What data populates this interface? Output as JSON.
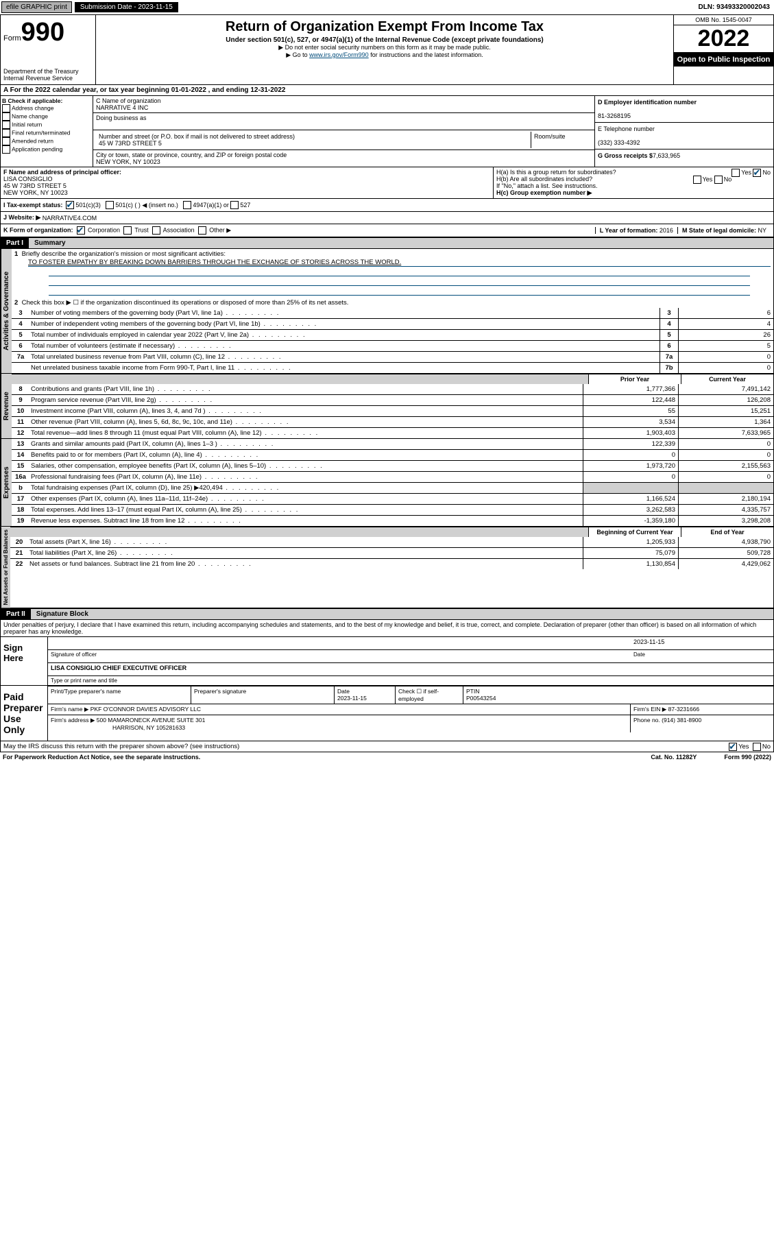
{
  "topbar": {
    "efile": "efile GRAPHIC print",
    "submission_label": "Submission Date - 2023-11-15",
    "dln": "DLN: 93493320002043"
  },
  "header": {
    "form_label": "Form",
    "form_number": "990",
    "dept": "Department of the Treasury",
    "irs": "Internal Revenue Service",
    "title": "Return of Organization Exempt From Income Tax",
    "subtitle": "Under section 501(c), 527, or 4947(a)(1) of the Internal Revenue Code (except private foundations)",
    "note1": "▶ Do not enter social security numbers on this form as it may be made public.",
    "note2_pre": "▶ Go to ",
    "note2_link": "www.irs.gov/Form990",
    "note2_post": " for instructions and the latest information.",
    "omb": "OMB No. 1545-0047",
    "year": "2022",
    "open": "Open to Public Inspection"
  },
  "row_a": "A For the 2022 calendar year, or tax year beginning 01-01-2022   , and ending 12-31-2022",
  "col_b": {
    "label": "B Check if applicable:",
    "items": [
      "Address change",
      "Name change",
      "Initial return",
      "Final return/terminated",
      "Amended return",
      "Application pending"
    ]
  },
  "col_c": {
    "name_label": "C Name of organization",
    "name": "NARRATIVE 4 INC",
    "dba_label": "Doing business as",
    "addr_label": "Number and street (or P.O. box if mail is not delivered to street address)",
    "room_label": "Room/suite",
    "addr": "45 W 73RD STREET 5",
    "city_label": "City or town, state or province, country, and ZIP or foreign postal code",
    "city": "NEW YORK, NY  10023"
  },
  "col_de": {
    "d_label": "D Employer identification number",
    "ein": "81-3268195",
    "e_label": "E Telephone number",
    "phone": "(332) 333-4392",
    "g_label": "G Gross receipts $",
    "gross": "7,633,965"
  },
  "col_f": {
    "label": "F Name and address of principal officer:",
    "name": "LISA CONSIGLIO",
    "addr1": "45 W 73RD STREET 5",
    "addr2": "NEW YORK, NY  10023"
  },
  "col_h": {
    "ha": "H(a)  Is this a group return for subordinates?",
    "hb": "H(b)  Are all subordinates included?",
    "hb_note": "If \"No,\" attach a list. See instructions.",
    "hc": "H(c)  Group exemption number ▶",
    "yes": "Yes",
    "no": "No"
  },
  "row_i": {
    "label": "I    Tax-exempt status:",
    "opt1": "501(c)(3)",
    "opt2": "501(c) (  ) ◀ (insert no.)",
    "opt3": "4947(a)(1) or",
    "opt4": "527"
  },
  "row_j": {
    "label": "J   Website: ▶",
    "val": "NARRATIVE4.COM"
  },
  "row_k": {
    "label": "K Form of organization:",
    "opts": [
      "Corporation",
      "Trust",
      "Association",
      "Other ▶"
    ],
    "l_label": "L Year of formation:",
    "l_val": "2016",
    "m_label": "M State of legal domicile:",
    "m_val": "NY"
  },
  "part1": {
    "label": "Part I",
    "title": "Summary",
    "line1_label": "Briefly describe the organization's mission or most significant activities:",
    "mission": "TO FOSTER EMPATHY BY BREAKING DOWN BARRIERS THROUGH THE EXCHANGE OF STORIES ACROSS THE WORLD.",
    "line2": "Check this box ▶ ☐  if the organization discontinued its operations or disposed of more than 25% of its net assets.",
    "governance": [
      {
        "n": "3",
        "d": "Number of voting members of the governing body (Part VI, line 1a)",
        "k": "3",
        "v": "6"
      },
      {
        "n": "4",
        "d": "Number of independent voting members of the governing body (Part VI, line 1b)",
        "k": "4",
        "v": "4"
      },
      {
        "n": "5",
        "d": "Total number of individuals employed in calendar year 2022 (Part V, line 2a)",
        "k": "5",
        "v": "26"
      },
      {
        "n": "6",
        "d": "Total number of volunteers (estimate if necessary)",
        "k": "6",
        "v": "5"
      },
      {
        "n": "7a",
        "d": "Total unrelated business revenue from Part VIII, column (C), line 12",
        "k": "7a",
        "v": "0"
      },
      {
        "n": "",
        "d": "Net unrelated business taxable income from Form 990-T, Part I, line 11",
        "k": "7b",
        "v": "0"
      }
    ],
    "prior_label": "Prior Year",
    "current_label": "Current Year",
    "revenue": [
      {
        "n": "8",
        "d": "Contributions and grants (Part VIII, line 1h)",
        "p": "1,777,366",
        "c": "7,491,142"
      },
      {
        "n": "9",
        "d": "Program service revenue (Part VIII, line 2g)",
        "p": "122,448",
        "c": "126,208"
      },
      {
        "n": "10",
        "d": "Investment income (Part VIII, column (A), lines 3, 4, and 7d )",
        "p": "55",
        "c": "15,251"
      },
      {
        "n": "11",
        "d": "Other revenue (Part VIII, column (A), lines 5, 6d, 8c, 9c, 10c, and 11e)",
        "p": "3,534",
        "c": "1,364"
      },
      {
        "n": "12",
        "d": "Total revenue—add lines 8 through 11 (must equal Part VIII, column (A), line 12)",
        "p": "1,903,403",
        "c": "7,633,965"
      }
    ],
    "expenses": [
      {
        "n": "13",
        "d": "Grants and similar amounts paid (Part IX, column (A), lines 1–3 )",
        "p": "122,339",
        "c": "0"
      },
      {
        "n": "14",
        "d": "Benefits paid to or for members (Part IX, column (A), line 4)",
        "p": "0",
        "c": "0"
      },
      {
        "n": "15",
        "d": "Salaries, other compensation, employee benefits (Part IX, column (A), lines 5–10)",
        "p": "1,973,720",
        "c": "2,155,563"
      },
      {
        "n": "16a",
        "d": "Professional fundraising fees (Part IX, column (A), line 11e)",
        "p": "0",
        "c": "0"
      },
      {
        "n": "b",
        "d": "Total fundraising expenses (Part IX, column (D), line 25) ▶420,494",
        "p": "",
        "c": "",
        "shade": true
      },
      {
        "n": "17",
        "d": "Other expenses (Part IX, column (A), lines 11a–11d, 11f–24e)",
        "p": "1,166,524",
        "c": "2,180,194"
      },
      {
        "n": "18",
        "d": "Total expenses. Add lines 13–17 (must equal Part IX, column (A), line 25)",
        "p": "3,262,583",
        "c": "4,335,757"
      },
      {
        "n": "19",
        "d": "Revenue less expenses. Subtract line 18 from line 12",
        "p": "-1,359,180",
        "c": "3,298,208"
      }
    ],
    "begin_label": "Beginning of Current Year",
    "end_label": "End of Year",
    "netassets": [
      {
        "n": "20",
        "d": "Total assets (Part X, line 16)",
        "p": "1,205,933",
        "c": "4,938,790"
      },
      {
        "n": "21",
        "d": "Total liabilities (Part X, line 26)",
        "p": "75,079",
        "c": "509,728"
      },
      {
        "n": "22",
        "d": "Net assets or fund balances. Subtract line 21 from line 20",
        "p": "1,130,854",
        "c": "4,429,062"
      }
    ],
    "vtabs": {
      "gov": "Activities & Governance",
      "rev": "Revenue",
      "exp": "Expenses",
      "net": "Net Assets or Fund Balances"
    }
  },
  "part2": {
    "label": "Part II",
    "title": "Signature Block",
    "penalties": "Under penalties of perjury, I declare that I have examined this return, including accompanying schedules and statements, and to the best of my knowledge and belief, it is true, correct, and complete. Declaration of preparer (other than officer) is based on all information of which preparer has any knowledge.",
    "sign_here": "Sign Here",
    "sig_officer": "Signature of officer",
    "sig_date": "2023-11-15",
    "date_label": "Date",
    "officer_name": "LISA CONSIGLIO  CHIEF EXECUTIVE OFFICER",
    "type_name": "Type or print name and title",
    "paid": "Paid Preparer Use Only",
    "prep_name_label": "Print/Type preparer's name",
    "prep_sig_label": "Preparer's signature",
    "prep_date_label": "Date",
    "prep_date": "2023-11-15",
    "check_if": "Check ☐ if self-employed",
    "ptin_label": "PTIN",
    "ptin": "P00543254",
    "firm_name_label": "Firm's name    ▶",
    "firm_name": "PKF O'CONNOR DAVIES ADVISORY LLC",
    "firm_ein_label": "Firm's EIN ▶",
    "firm_ein": "87-3231666",
    "firm_addr_label": "Firm's address ▶",
    "firm_addr1": "500 MAMARONECK AVENUE SUITE 301",
    "firm_addr2": "HARRISON, NY  105281633",
    "phone_label": "Phone no.",
    "phone": "(914) 381-8900",
    "may_discuss": "May the IRS discuss this return with the preparer shown above? (see instructions)"
  },
  "footer": {
    "pra": "For Paperwork Reduction Act Notice, see the separate instructions.",
    "cat": "Cat. No. 11282Y",
    "form": "Form 990 (2022)"
  }
}
